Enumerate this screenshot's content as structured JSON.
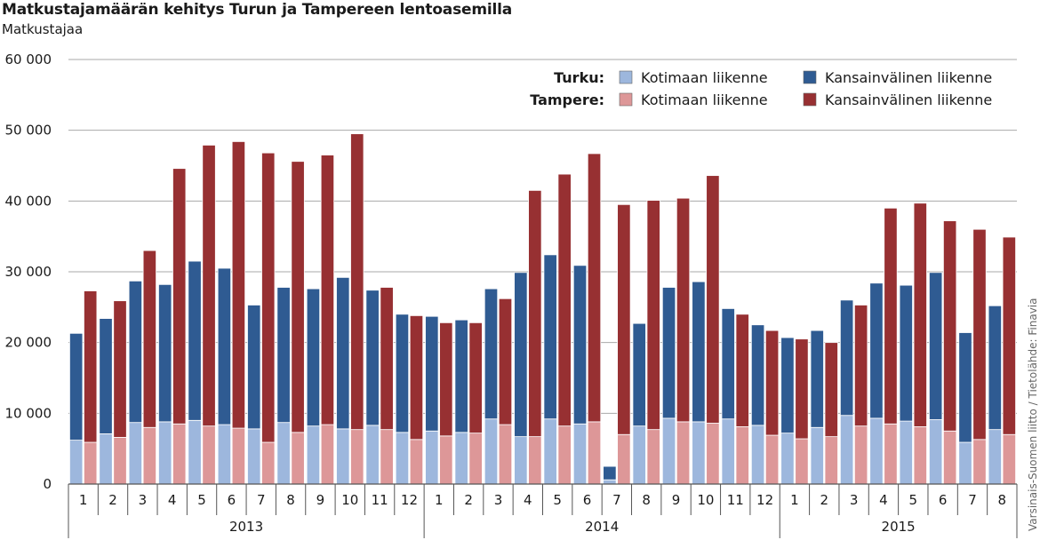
{
  "title": "Matkustajamäärän kehitys Turun ja Tampereen lentoasemilla",
  "subtitle": "Matkustajaa",
  "source": "Varsinais-Suomen liitto / Tietolähde: Finavia",
  "colors": {
    "turku_dom": "#9db7dd",
    "turku_int": "#2f5b92",
    "tampere_dom": "#dd9798",
    "tampere_int": "#973032",
    "grid": "#aaaaaa",
    "axis": "#555555"
  },
  "chart_data": {
    "type": "bar",
    "ylim": [
      0,
      60000
    ],
    "yticks": [
      0,
      10000,
      20000,
      30000,
      40000,
      50000,
      60000
    ],
    "ytick_labels": [
      "0",
      "10 000",
      "20 000",
      "30 000",
      "40 000",
      "50 000",
      "60 000"
    ],
    "legend": {
      "rows": [
        {
          "group": "Turku:",
          "dom_label": "Kotimaan liikenne",
          "int_label": "Kansainvälinen liikenne"
        },
        {
          "group": "Tampere:",
          "dom_label": "Kotimaan liikenne",
          "int_label": "Kansainvälinen liikenne"
        }
      ],
      "placement": "top-right"
    },
    "years": [
      {
        "label": "2013",
        "months": [
          "1",
          "2",
          "3",
          "4",
          "5",
          "6",
          "7",
          "8",
          "9",
          "10",
          "11",
          "12"
        ]
      },
      {
        "label": "2014",
        "months": [
          "1",
          "2",
          "3",
          "4",
          "5",
          "6",
          "7",
          "8",
          "9",
          "10",
          "11",
          "12"
        ]
      },
      {
        "label": "2015",
        "months": [
          "1",
          "2",
          "3",
          "4",
          "5",
          "6",
          "7",
          "8"
        ]
      }
    ],
    "series": [
      {
        "name": "Turku: Kotimaan liikenne",
        "values": [
          6200,
          7100,
          8700,
          8800,
          9000,
          8400,
          7800,
          8700,
          8200,
          7800,
          8300,
          7300,
          7500,
          7300,
          9200,
          6700,
          9200,
          8500,
          600,
          8200,
          9300,
          8800,
          9200,
          8300,
          7200,
          8000,
          9700,
          9300,
          8900,
          9100,
          5900,
          7700
        ]
      },
      {
        "name": "Turku: Kansainvälinen liikenne",
        "values": [
          15100,
          16300,
          20000,
          19400,
          22500,
          22100,
          17500,
          19100,
          19400,
          21400,
          19100,
          16700,
          16200,
          15900,
          18400,
          23200,
          23200,
          22400,
          1900,
          14500,
          18500,
          19800,
          15600,
          14200,
          13500,
          13700,
          16300,
          19100,
          19200,
          20800,
          15500,
          17500
        ]
      },
      {
        "name": "Tampere: Kotimaan liikenne",
        "values": [
          5900,
          6600,
          8000,
          8500,
          8200,
          7900,
          5900,
          7300,
          8400,
          7700,
          7700,
          6300,
          6800,
          7200,
          8400,
          6700,
          8200,
          8800,
          7000,
          7700,
          8800,
          8600,
          8100,
          6900,
          6400,
          6700,
          8200,
          8500,
          8100,
          7500,
          6300,
          7000
        ]
      },
      {
        "name": "Tampere: Kansainvälinen liikenne",
        "values": [
          21400,
          19300,
          25000,
          36100,
          39700,
          40500,
          40900,
          38300,
          38100,
          41800,
          20100,
          17500,
          16000,
          15600,
          17800,
          34800,
          35600,
          37900,
          32500,
          32400,
          31600,
          35000,
          15900,
          14800,
          14100,
          13300,
          17100,
          30500,
          31600,
          29700,
          29700,
          27900
        ]
      }
    ]
  }
}
